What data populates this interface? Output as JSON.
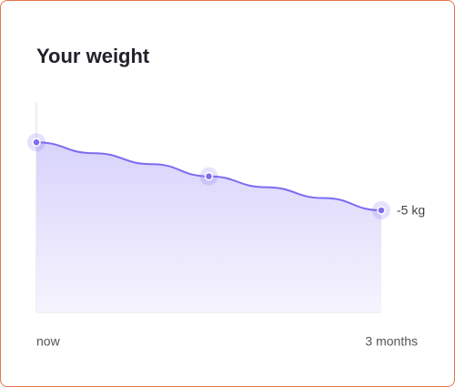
{
  "chart_data": {
    "type": "line",
    "title": "Your weight",
    "categories": [
      "now",
      null,
      null,
      null,
      null,
      null,
      "3 months"
    ],
    "values": [
      0,
      -0.8,
      -1.6,
      -2.5,
      -3.3,
      -4.1,
      -5
    ],
    "value_labels": [
      null,
      null,
      null,
      null,
      null,
      null,
      "-5 kg"
    ],
    "highlight": [
      0,
      3,
      6
    ],
    "color": "#7b6cf0",
    "ylim": [
      -12.5,
      2.9
    ]
  }
}
